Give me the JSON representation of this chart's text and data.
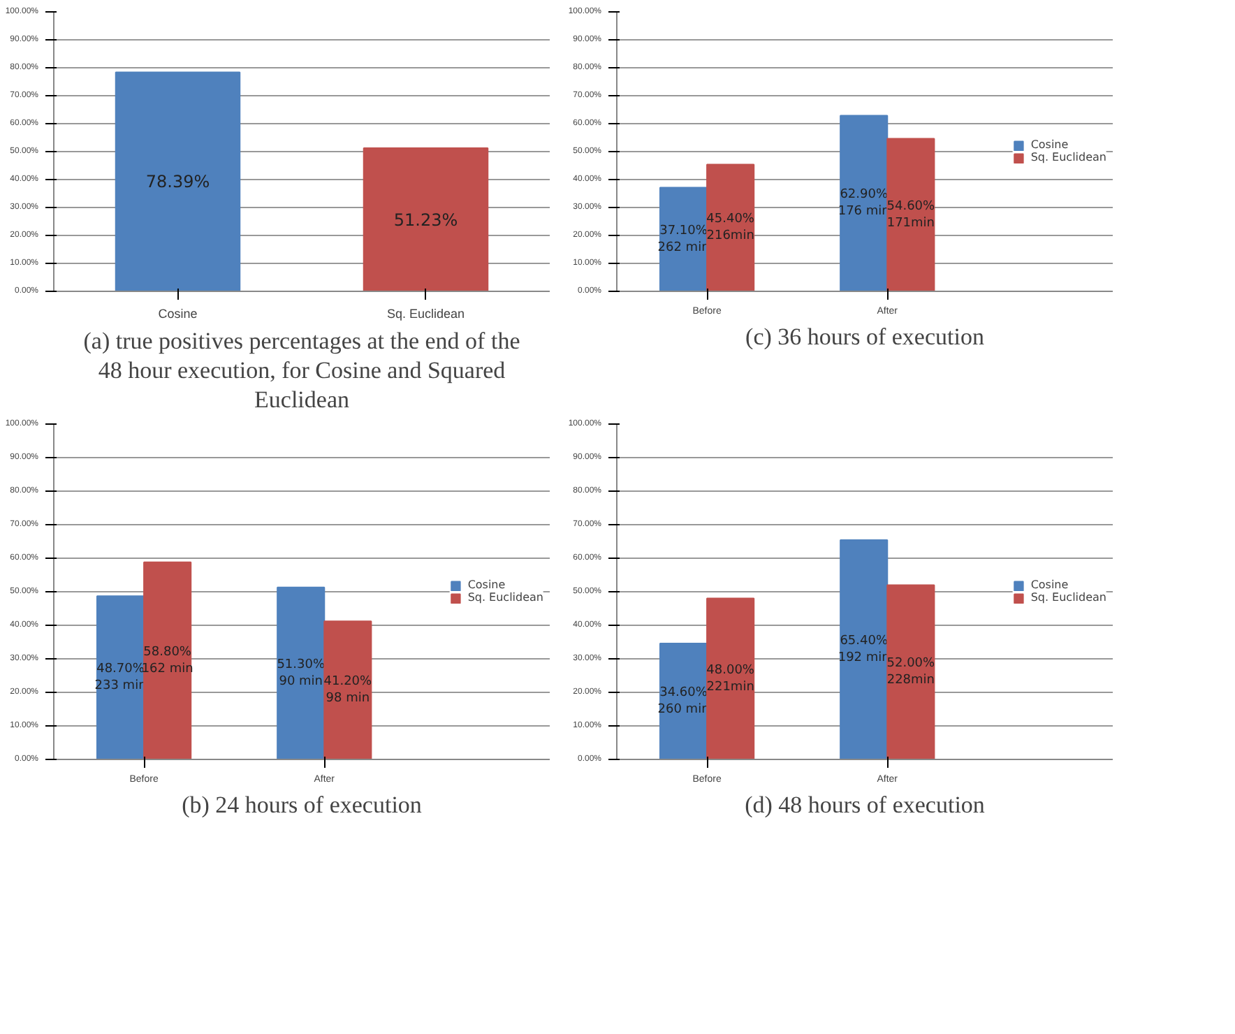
{
  "chart_data": [
    {
      "type": "bar",
      "categories": [
        "Cosine",
        "Sq. Euclidean"
      ],
      "values": [
        78.39,
        51.23
      ],
      "colors": [
        "#4f81bd",
        "#c0504d"
      ],
      "value_labels": [
        "78.39%",
        "51.23%"
      ],
      "ylim": [
        0,
        100
      ],
      "yticks": [
        {
          "value": 0,
          "label": "0.00%"
        },
        {
          "value": 10,
          "label": "10.00%"
        },
        {
          "value": 20,
          "label": "20.00%"
        },
        {
          "value": 30,
          "label": "30.00%"
        },
        {
          "value": 40,
          "label": "40.00%"
        },
        {
          "value": 50,
          "label": "50.00%"
        },
        {
          "value": 60,
          "label": "60.00%"
        },
        {
          "value": 70,
          "label": "70.00%"
        },
        {
          "value": 80,
          "label": "80.00%"
        },
        {
          "value": 90,
          "label": "90.00%"
        },
        {
          "value": 100,
          "label": "100.00%"
        }
      ],
      "grid": "y",
      "annotations": [
        "(a) true positives percentages at the end of the 48 hour execution, for Cosine and Squared Euclidean"
      ]
    },
    {
      "type": "bar",
      "categories": [
        "Before",
        "After"
      ],
      "series": [
        {
          "name": "Cosine",
          "color": "#4f81bd",
          "values": [
            37.1,
            62.9
          ],
          "value_labels": [
            "37.10%\n262 min",
            "62.90%\n176 min"
          ]
        },
        {
          "name": "Sq. Euclidean",
          "color": "#c0504d",
          "values": [
            45.4,
            54.6
          ],
          "value_labels": [
            "45.40%\n216min",
            "54.60%\n171min"
          ]
        }
      ],
      "ylim": [
        0,
        100
      ],
      "yticks": [
        {
          "value": 0,
          "label": "0.00%"
        },
        {
          "value": 10,
          "label": "10.00%"
        },
        {
          "value": 20,
          "label": "20.00%"
        },
        {
          "value": 30,
          "label": "30.00%"
        },
        {
          "value": 40,
          "label": "40.00%"
        },
        {
          "value": 50,
          "label": "50.00%"
        },
        {
          "value": 60,
          "label": "60.00%"
        },
        {
          "value": 70,
          "label": "70.00%"
        },
        {
          "value": 80,
          "label": "80.00%"
        },
        {
          "value": 90,
          "label": "90.00%"
        },
        {
          "value": 100,
          "label": "100.00%"
        }
      ],
      "grid": "y",
      "legend": "right",
      "annotations": [
        "(c) 36 hours of execution"
      ]
    },
    {
      "type": "bar",
      "categories": [
        "Before",
        "After"
      ],
      "series": [
        {
          "name": "Cosine",
          "color": "#4f81bd",
          "values": [
            48.7,
            51.3
          ],
          "value_labels": [
            "48.70%\n233 min",
            "51.30%\n90 min"
          ]
        },
        {
          "name": "Sq. Euclidean",
          "color": "#c0504d",
          "values": [
            58.8,
            41.2
          ],
          "value_labels": [
            "58.80%\n162 min",
            "41.20%\n98 min"
          ]
        }
      ],
      "ylim": [
        0,
        100
      ],
      "yticks": [
        {
          "value": 0,
          "label": "0.00%"
        },
        {
          "value": 10,
          "label": "10.00%"
        },
        {
          "value": 20,
          "label": "20.00%"
        },
        {
          "value": 30,
          "label": "30.00%"
        },
        {
          "value": 40,
          "label": "40.00%"
        },
        {
          "value": 50,
          "label": "50.00%"
        },
        {
          "value": 60,
          "label": "60.00%"
        },
        {
          "value": 70,
          "label": "70.00%"
        },
        {
          "value": 80,
          "label": "80.00%"
        },
        {
          "value": 90,
          "label": "90.00%"
        },
        {
          "value": 100,
          "label": "100.00%"
        }
      ],
      "grid": "y",
      "legend": "right",
      "annotations": [
        "(b) 24 hours of execution"
      ]
    },
    {
      "type": "bar",
      "categories": [
        "Before",
        "After"
      ],
      "series": [
        {
          "name": "Cosine",
          "color": "#4f81bd",
          "values": [
            34.6,
            65.4
          ],
          "value_labels": [
            "34.60%\n260 min",
            "65.40%\n192 min"
          ]
        },
        {
          "name": "Sq. Euclidean",
          "color": "#c0504d",
          "values": [
            48.0,
            52.0
          ],
          "value_labels": [
            "48.00%\n221min",
            "52.00%\n228min"
          ]
        }
      ],
      "ylim": [
        0,
        100
      ],
      "yticks": [
        {
          "value": 0,
          "label": "0.00%"
        },
        {
          "value": 10,
          "label": "10.00%"
        },
        {
          "value": 20,
          "label": "20.00%"
        },
        {
          "value": 30,
          "label": "30.00%"
        },
        {
          "value": 40,
          "label": "40.00%"
        },
        {
          "value": 50,
          "label": "50.00%"
        },
        {
          "value": 60,
          "label": "60.00%"
        },
        {
          "value": 70,
          "label": "70.00%"
        },
        {
          "value": 80,
          "label": "80.00%"
        },
        {
          "value": 90,
          "label": "90.00%"
        },
        {
          "value": 100,
          "label": "100.00%"
        }
      ],
      "grid": "y",
      "legend": "right",
      "annotations": [
        "(d) 48 hours of execution"
      ]
    }
  ]
}
